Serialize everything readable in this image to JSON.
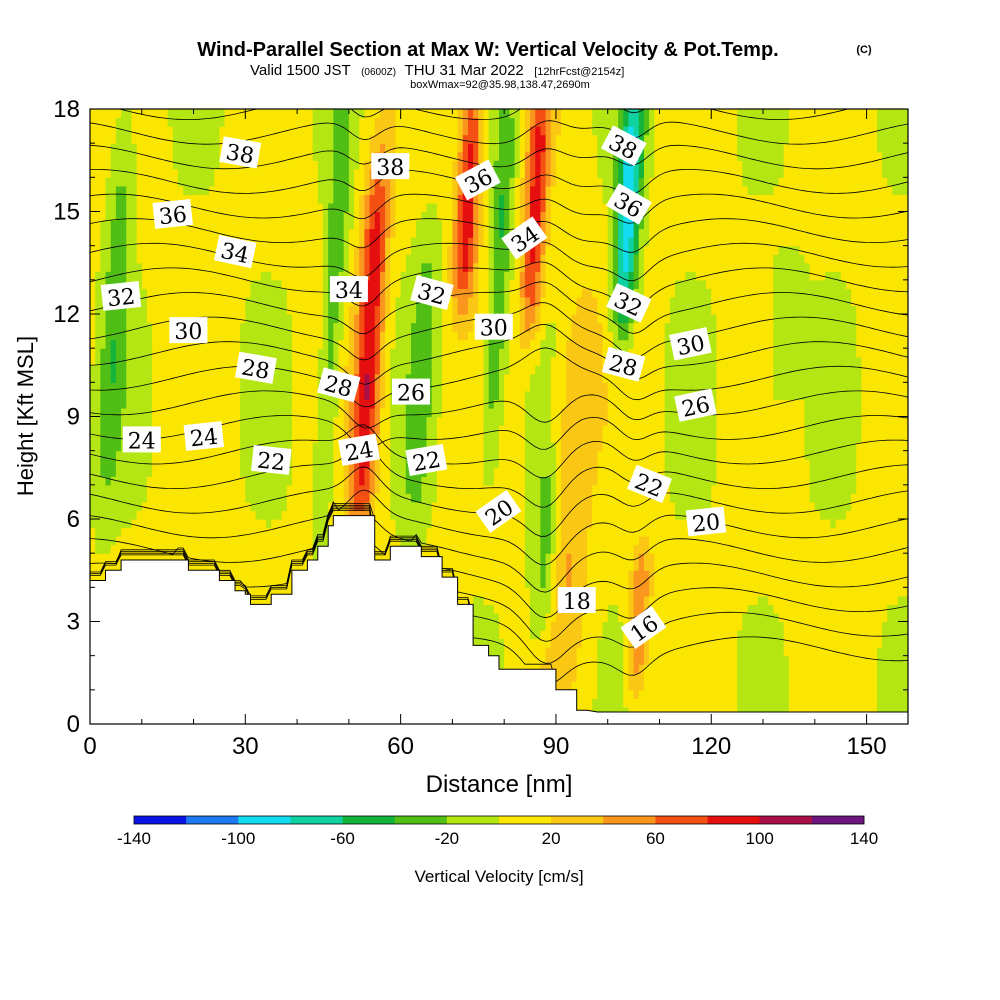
{
  "header": {
    "title": "Wind-Parallel Section at Max W: Vertical Velocity & Pot.Temp.",
    "copyright": "(C)",
    "valid_prefix": "Valid 1500 JST",
    "valid_utc": "(0600Z)",
    "valid_date": "THU 31 Mar 2022",
    "forecast": "[12hrFcst@2154z]",
    "box_info": "boxWmax=92@35.98,138.47,2690m"
  },
  "chart_data": {
    "type": "heatmap",
    "title": "Wind-Parallel Section at Max W: Vertical Velocity & Pot.Temp.",
    "xlabel": "Distance [nm]",
    "ylabel": "Height [Kft MSL]",
    "xlim": [
      0,
      158
    ],
    "ylim": [
      0,
      18
    ],
    "xticks": [
      0,
      30,
      60,
      90,
      120,
      150
    ],
    "yticks": [
      0,
      3,
      6,
      9,
      12,
      15,
      18
    ],
    "colorbar": {
      "label": "Vertical Velocity [cm/s]",
      "ticks": [
        -140,
        -100,
        -60,
        -20,
        20,
        60,
        100,
        140
      ],
      "bins": [
        -140,
        -120,
        -100,
        -80,
        -60,
        -40,
        -20,
        0,
        20,
        40,
        60,
        80,
        100,
        120,
        140
      ],
      "colors": [
        "#0a14e6",
        "#1e78f0",
        "#14dcf0",
        "#10d2a0",
        "#14b43c",
        "#50be14",
        "#b4e614",
        "#fae600",
        "#fac814",
        "#fa961e",
        "#f55014",
        "#e60f0f",
        "#aa0f46",
        "#6e147d"
      ]
    },
    "background_velocity_cm_s": 5,
    "updraft_bands": [
      {
        "x": 54,
        "half_width": 2.6,
        "y_min": 6.2,
        "y_max": 16,
        "peak_cm_s": 92
      },
      {
        "x": 73,
        "half_width": 2.3,
        "y_min": 13,
        "y_max": 18,
        "peak_cm_s": 90
      },
      {
        "x": 86,
        "half_width": 2.2,
        "y_min": 12,
        "y_max": 18,
        "peak_cm_s": 80
      },
      {
        "x": 93,
        "half_width": 4.0,
        "y_min": 2.0,
        "y_max": 12,
        "peak_cm_s": 38
      },
      {
        "x": 106,
        "half_width": 2.0,
        "y_min": 1.5,
        "y_max": 4.5,
        "peak_cm_s": 55
      }
    ],
    "downdraft_bands": [
      {
        "x": 5,
        "half_width": 2.5,
        "y_min": 7,
        "y_max": 18,
        "peak_cm_s": -35
      },
      {
        "x": 47,
        "half_width": 2.0,
        "y_min": 6.5,
        "y_max": 18,
        "peak_cm_s": -40
      },
      {
        "x": 64,
        "half_width": 2.5,
        "y_min": 6.5,
        "y_max": 14,
        "peak_cm_s": -30
      },
      {
        "x": 79,
        "half_width": 2.0,
        "y_min": 8,
        "y_max": 18,
        "peak_cm_s": -45
      },
      {
        "x": 88,
        "half_width": 2.5,
        "y_min": 3,
        "y_max": 7,
        "peak_cm_s": -40
      },
      {
        "x": 104,
        "half_width": 2.3,
        "y_min": 12,
        "y_max": 18,
        "peak_cm_s": -95
      },
      {
        "x": 134,
        "half_width": 3.0,
        "y_min": 10,
        "y_max": 13,
        "peak_cm_s": -28
      }
    ],
    "terrain_kft": {
      "x": [
        0,
        3,
        3,
        6,
        6,
        19,
        19,
        25,
        25,
        28,
        28,
        30,
        30,
        31,
        31,
        35,
        35,
        39,
        39,
        42,
        42,
        44,
        44,
        46,
        46,
        47,
        47,
        50,
        50,
        55,
        55,
        58,
        58,
        64,
        64,
        68,
        68,
        71,
        71,
        74,
        74,
        77,
        77,
        79,
        79,
        83,
        83,
        90,
        90,
        94,
        94,
        96,
        96,
        98,
        98,
        158
      ],
      "y": [
        4.2,
        4.2,
        4.5,
        4.5,
        4.8,
        4.8,
        4.5,
        4.5,
        4.2,
        4.2,
        3.9,
        3.9,
        3.8,
        3.8,
        3.5,
        3.5,
        3.8,
        3.8,
        4.5,
        4.5,
        4.8,
        4.8,
        5.2,
        5.2,
        5.8,
        5.8,
        6.1,
        6.1,
        6.1,
        6.1,
        4.8,
        4.8,
        5.2,
        5.2,
        4.9,
        4.9,
        4.3,
        4.3,
        3.5,
        3.5,
        2.3,
        2.3,
        2.0,
        2.0,
        1.6,
        1.6,
        1.6,
        1.6,
        1.0,
        1.0,
        0.4,
        0.4,
        0.4,
        0.35,
        0.35,
        0.35
      ]
    },
    "isentrope_levels_k": [
      16,
      17,
      18,
      19,
      20,
      21,
      22,
      23,
      24,
      25,
      26,
      27,
      28,
      29,
      30,
      31,
      32,
      33,
      34,
      35,
      36,
      37,
      38,
      39
    ],
    "contour_labels": [
      {
        "text": "38",
        "x": 29,
        "y": 16.7,
        "angle": 10
      },
      {
        "text": "38",
        "x": 58,
        "y": 16.3,
        "angle": 0
      },
      {
        "text": "38",
        "x": 103,
        "y": 16.9,
        "angle": 28
      },
      {
        "text": "36",
        "x": 16,
        "y": 14.9,
        "angle": -6
      },
      {
        "text": "36",
        "x": 75,
        "y": 15.9,
        "angle": -28
      },
      {
        "text": "36",
        "x": 104,
        "y": 15.2,
        "angle": 30
      },
      {
        "text": "34",
        "x": 28,
        "y": 13.8,
        "angle": 12
      },
      {
        "text": "34",
        "x": 50,
        "y": 12.7,
        "angle": 0
      },
      {
        "text": "34",
        "x": 84,
        "y": 14.2,
        "angle": -35
      },
      {
        "text": "32",
        "x": 6,
        "y": 12.5,
        "angle": -6
      },
      {
        "text": "32",
        "x": 66,
        "y": 12.6,
        "angle": 15
      },
      {
        "text": "32",
        "x": 104,
        "y": 12.3,
        "angle": 25
      },
      {
        "text": "30",
        "x": 19,
        "y": 11.5,
        "angle": 0
      },
      {
        "text": "30",
        "x": 78,
        "y": 11.6,
        "angle": 0
      },
      {
        "text": "30",
        "x": 116,
        "y": 11.1,
        "angle": -12
      },
      {
        "text": "28",
        "x": 32,
        "y": 10.4,
        "angle": 10
      },
      {
        "text": "28",
        "x": 48,
        "y": 9.9,
        "angle": 15
      },
      {
        "text": "28",
        "x": 103,
        "y": 10.5,
        "angle": 15
      },
      {
        "text": "26",
        "x": 62,
        "y": 9.7,
        "angle": 0
      },
      {
        "text": "26",
        "x": 117,
        "y": 9.3,
        "angle": -12
      },
      {
        "text": "24",
        "x": 10,
        "y": 8.3,
        "angle": 0
      },
      {
        "text": "24",
        "x": 22,
        "y": 8.4,
        "angle": -6
      },
      {
        "text": "24",
        "x": 52,
        "y": 8.0,
        "angle": -10
      },
      {
        "text": "22",
        "x": 35,
        "y": 7.7,
        "angle": 6
      },
      {
        "text": "22",
        "x": 65,
        "y": 7.7,
        "angle": -10
      },
      {
        "text": "22",
        "x": 108,
        "y": 7.0,
        "angle": 22
      },
      {
        "text": "20",
        "x": 79,
        "y": 6.2,
        "angle": -35
      },
      {
        "text": "20",
        "x": 119,
        "y": 5.9,
        "angle": -6
      },
      {
        "text": "18",
        "x": 94,
        "y": 3.6,
        "angle": 0
      },
      {
        "text": "16",
        "x": 107,
        "y": 2.8,
        "angle": -35
      }
    ]
  }
}
